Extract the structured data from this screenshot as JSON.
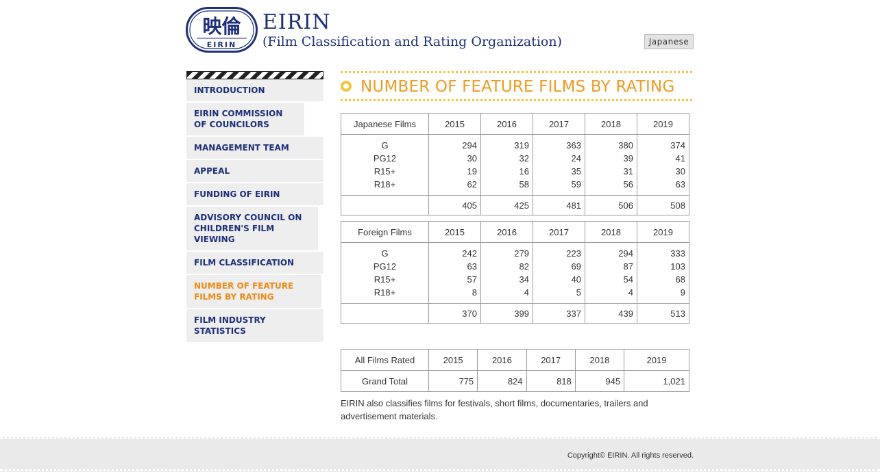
{
  "header": {
    "logo_kanji": "映倫",
    "logo_caption": "EIRIN",
    "brand_name": "EIRIN",
    "brand_subtitle": "(Film Classification and Rating Organization)",
    "language_button": "Japanese"
  },
  "sidebar": {
    "items": [
      {
        "label": "INTRODUCTION"
      },
      {
        "label": "EIRIN COMMISSION OF COUNCILORS"
      },
      {
        "label": "MANAGEMENT TEAM"
      },
      {
        "label": "APPEAL"
      },
      {
        "label": "FUNDING OF EIRIN"
      },
      {
        "label": "ADVISORY COUNCIL ON CHILDREN'S FILM VIEWING"
      },
      {
        "label": "FILM CLASSIFICATION"
      },
      {
        "label": "NUMBER OF FEATURE FILMS BY RATING",
        "active": true
      },
      {
        "label": "FILM INDUSTRY STATISTICS"
      }
    ],
    "active_color": "#f08a16",
    "link_color": "#1c2f7b"
  },
  "main": {
    "page_title": "NUMBER OF FEATURE FILMS BY RATING",
    "accent_color": "#f39a1e",
    "years": [
      "2015",
      "2016",
      "2017",
      "2018",
      "2019"
    ],
    "japanese": {
      "header": "Japanese Films",
      "ratings": [
        "G",
        "PG12",
        "R15+",
        "R18+"
      ],
      "values": {
        "2015": [
          "294",
          "30",
          "19",
          "62"
        ],
        "2016": [
          "319",
          "32",
          "16",
          "58"
        ],
        "2017": [
          "363",
          "24",
          "35",
          "59"
        ],
        "2018": [
          "380",
          "39",
          "31",
          "56"
        ],
        "2019": [
          "374",
          "41",
          "30",
          "63"
        ]
      },
      "totals": [
        "405",
        "425",
        "481",
        "506",
        "508"
      ]
    },
    "foreign": {
      "header": "Foreign Films",
      "ratings": [
        "G",
        "PG12",
        "R15+",
        "R18+"
      ],
      "values": {
        "2015": [
          "242",
          "63",
          "57",
          "8"
        ],
        "2016": [
          "279",
          "82",
          "34",
          "4"
        ],
        "2017": [
          "223",
          "69",
          "40",
          "5"
        ],
        "2018": [
          "294",
          "87",
          "54",
          "4"
        ],
        "2019": [
          "333",
          "103",
          "68",
          "9"
        ]
      },
      "totals": [
        "370",
        "399",
        "337",
        "439",
        "513"
      ]
    },
    "all": {
      "header": "All Films Rated",
      "row_label": "Grand Total",
      "totals": [
        "775",
        "824",
        "818",
        "945",
        "1,021"
      ]
    },
    "note": "EIRIN also classifies films for festivals, short films, documentaries, trailers and advertisement materials."
  },
  "footer": {
    "copyright": "Copyright© EIRIN. All rights reserved."
  }
}
